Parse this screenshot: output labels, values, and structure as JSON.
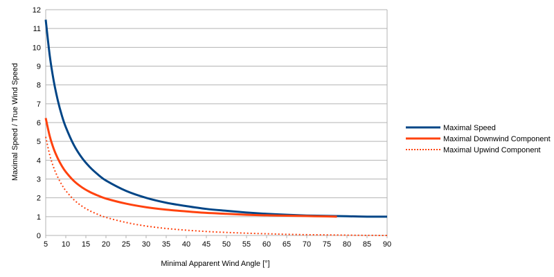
{
  "chart_data": {
    "type": "line",
    "title": "",
    "xlabel": "Minimal Apparent Wind Angle [°]",
    "ylabel": "Maximal Speed / True Wind Speed",
    "xlim": [
      5,
      90
    ],
    "ylim": [
      0,
      12
    ],
    "xticks": [
      5,
      10,
      15,
      20,
      25,
      30,
      35,
      40,
      45,
      50,
      55,
      60,
      65,
      70,
      75,
      80,
      85,
      90
    ],
    "yticks": [
      0,
      1,
      2,
      3,
      4,
      5,
      6,
      7,
      8,
      9,
      10,
      11,
      12
    ],
    "grid": "horizontal",
    "legend_position": "right",
    "series": [
      {
        "name": "Maximal Speed",
        "color": "#004586",
        "style": "solid",
        "x": [
          5,
          6,
          7,
          8,
          9,
          10,
          12,
          14,
          16,
          18,
          20,
          25,
          30,
          35,
          40,
          45,
          50,
          55,
          60,
          65,
          70,
          75,
          80,
          85,
          90
        ],
        "y": [
          11.47,
          9.57,
          8.21,
          7.19,
          6.39,
          5.76,
          4.81,
          4.13,
          3.63,
          3.24,
          2.92,
          2.37,
          2.0,
          1.74,
          1.56,
          1.41,
          1.31,
          1.22,
          1.15,
          1.1,
          1.06,
          1.04,
          1.02,
          1.0,
          1.0
        ]
      },
      {
        "name": "Maximal Downwind Component",
        "color": "#ff420e",
        "style": "solid",
        "x": [
          5,
          6,
          7,
          8,
          9,
          10,
          12,
          14,
          16,
          18,
          20,
          25,
          30,
          35,
          40,
          45,
          50,
          55,
          60,
          65,
          70,
          75,
          77.5
        ],
        "y": [
          6.24,
          5.28,
          4.6,
          4.1,
          3.7,
          3.38,
          2.9,
          2.56,
          2.31,
          2.12,
          1.96,
          1.69,
          1.5,
          1.37,
          1.28,
          1.2,
          1.15,
          1.1,
          1.07,
          1.05,
          1.03,
          1.01,
          1.0
        ]
      },
      {
        "name": "Maximal Upwind Component",
        "color": "#ff420e",
        "style": "dotted",
        "x": [
          5,
          6,
          7,
          8,
          9,
          10,
          12,
          14,
          16,
          18,
          20,
          25,
          30,
          35,
          40,
          45,
          50,
          55,
          60,
          65,
          70,
          75,
          80,
          85,
          90
        ],
        "y": [
          5.24,
          4.28,
          3.6,
          3.1,
          2.7,
          2.38,
          1.9,
          1.56,
          1.31,
          1.12,
          0.96,
          0.69,
          0.5,
          0.37,
          0.28,
          0.21,
          0.16,
          0.12,
          0.09,
          0.06,
          0.04,
          0.03,
          0.015,
          0.005,
          0.0
        ]
      }
    ]
  }
}
